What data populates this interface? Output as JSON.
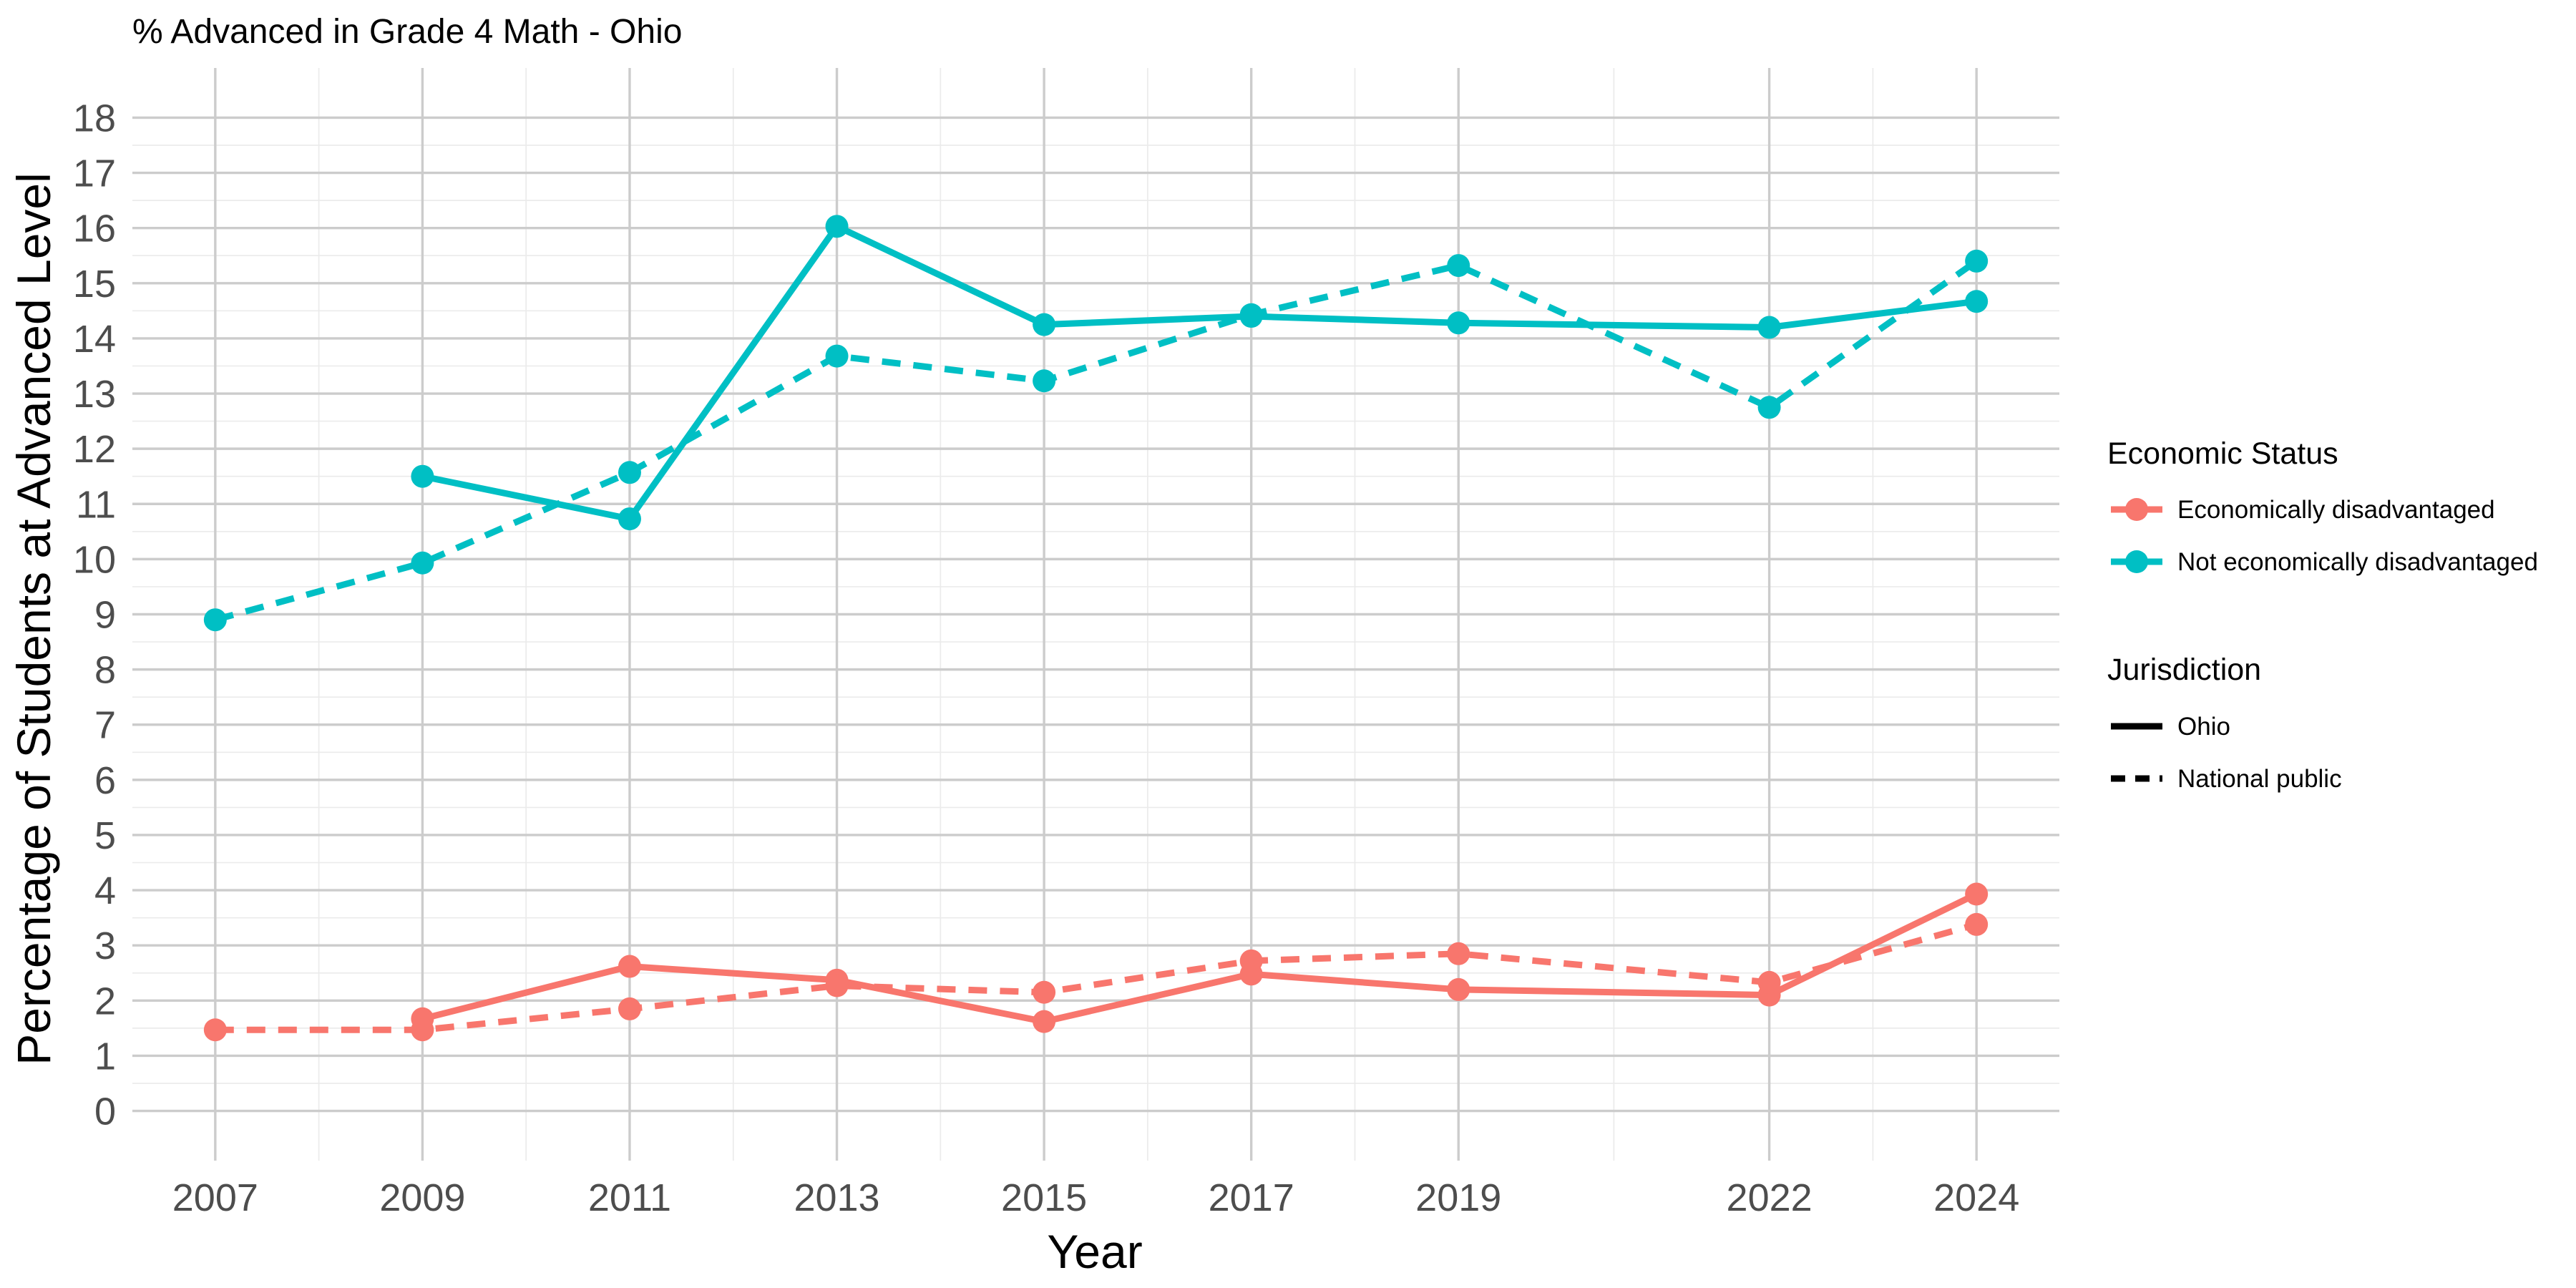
{
  "chart_data": {
    "type": "line",
    "title": "% Advanced in Grade 4 Math - Ohio",
    "xlabel": "Year",
    "ylabel": "Percentage of Students at Advanced Level",
    "x_ticks": [
      "2007",
      "2009",
      "2011",
      "2013",
      "2015",
      "2017",
      "2019",
      "2022",
      "2024"
    ],
    "y_ticks": [
      "0",
      "1",
      "2",
      "3",
      "4",
      "5",
      "6",
      "7",
      "8",
      "9",
      "10",
      "11",
      "12",
      "13",
      "14",
      "15",
      "16",
      "17",
      "18"
    ],
    "xlim": [
      2006.2,
      2024.8
    ],
    "ylim": [
      -0.9,
      18.9
    ],
    "grid": true,
    "legend_position": "right",
    "legends": {
      "color": {
        "title": "Economic Status",
        "items": [
          {
            "label": "Economically disadvantaged",
            "color": "#F8766D"
          },
          {
            "label": "Not economically disadvantaged",
            "color": "#00BFC4"
          }
        ]
      },
      "linetype": {
        "title": "Jurisdiction",
        "items": [
          {
            "label": "Ohio",
            "dash": "solid"
          },
          {
            "label": "National public",
            "dash": "dashed"
          }
        ]
      }
    },
    "series": [
      {
        "group": "Economically disadvantaged",
        "jurisdiction": "Ohio",
        "color": "#F8766D",
        "dash": "solid",
        "points": [
          [
            2009,
            1.67
          ],
          [
            2011,
            2.62
          ],
          [
            2013,
            2.37
          ],
          [
            2015,
            1.62
          ],
          [
            2017,
            2.48
          ],
          [
            2019,
            2.2
          ],
          [
            2022,
            2.1
          ],
          [
            2024,
            3.93
          ]
        ]
      },
      {
        "group": "Economically disadvantaged",
        "jurisdiction": "National public",
        "color": "#F8766D",
        "dash": "dashed",
        "points": [
          [
            2007,
            1.47
          ],
          [
            2009,
            1.47
          ],
          [
            2011,
            1.85
          ],
          [
            2013,
            2.27
          ],
          [
            2015,
            2.15
          ],
          [
            2017,
            2.72
          ],
          [
            2019,
            2.85
          ],
          [
            2022,
            2.33
          ],
          [
            2024,
            3.38
          ]
        ]
      },
      {
        "group": "Not economically disadvantaged",
        "jurisdiction": "Ohio",
        "color": "#00BFC4",
        "dash": "solid",
        "points": [
          [
            2009,
            11.5
          ],
          [
            2011,
            10.73
          ],
          [
            2013,
            16.03
          ],
          [
            2015,
            14.25
          ],
          [
            2017,
            14.4
          ],
          [
            2019,
            14.28
          ],
          [
            2022,
            14.2
          ],
          [
            2024,
            14.67
          ]
        ]
      },
      {
        "group": "Not economically disadvantaged",
        "jurisdiction": "National public",
        "color": "#00BFC4",
        "dash": "dashed",
        "points": [
          [
            2007,
            8.9
          ],
          [
            2009,
            9.93
          ],
          [
            2011,
            11.57
          ],
          [
            2013,
            13.68
          ],
          [
            2015,
            13.23
          ],
          [
            2017,
            14.43
          ],
          [
            2019,
            15.32
          ],
          [
            2022,
            12.75
          ],
          [
            2024,
            15.4
          ]
        ]
      }
    ]
  }
}
